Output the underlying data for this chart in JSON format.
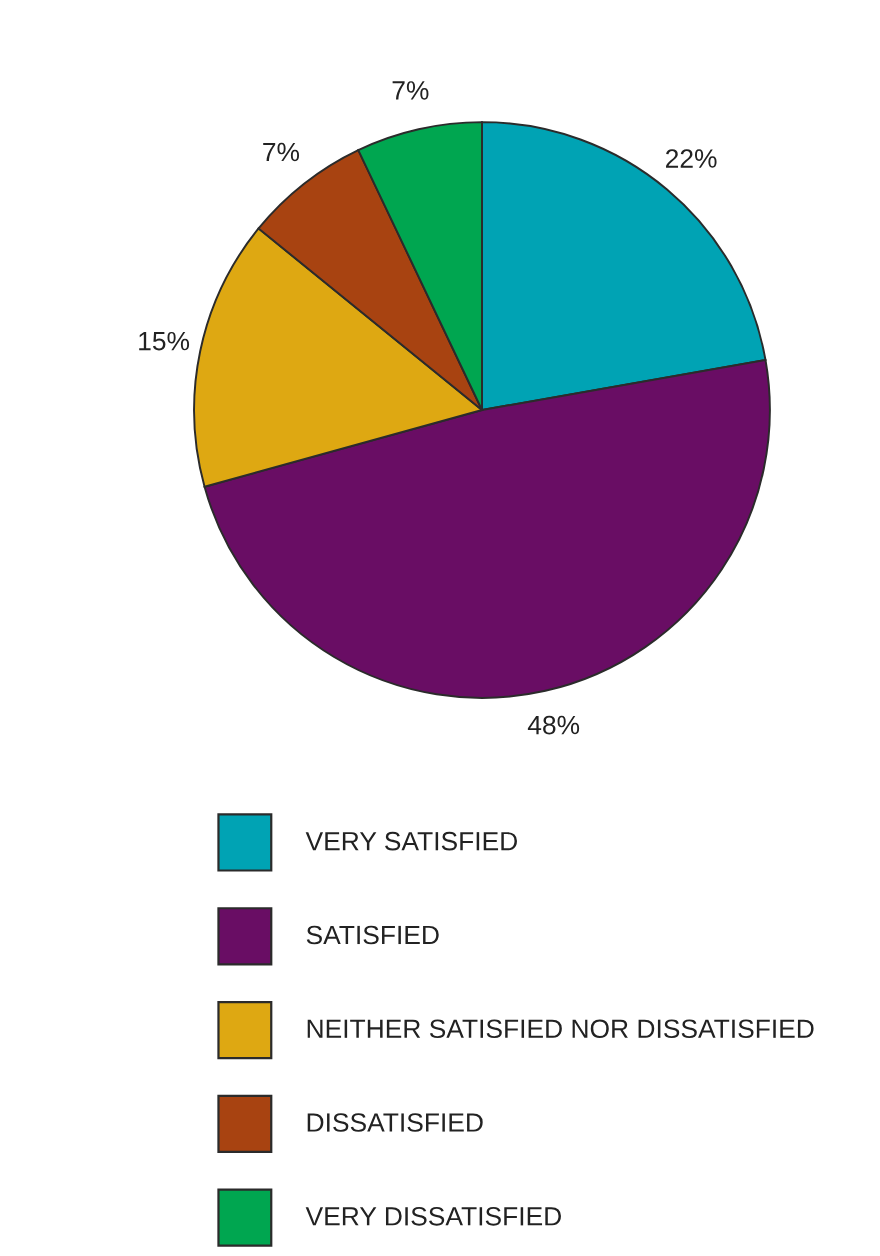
{
  "chart_data": {
    "type": "pie",
    "categories": [
      "VERY SATISFIED",
      "SATISFIED",
      "NEITHER SATISFIED NOR DISSATISFIED",
      "DISSATISFIED",
      "VERY DISSATISFIED"
    ],
    "values": [
      22,
      48,
      15,
      7,
      7
    ],
    "colors": [
      "#00a3b4",
      "#690d64",
      "#dea812",
      "#a84311",
      "#00a650"
    ],
    "value_labels": [
      "22%",
      "48%",
      "15%",
      "7%",
      "7%"
    ],
    "legend": "bottom"
  }
}
